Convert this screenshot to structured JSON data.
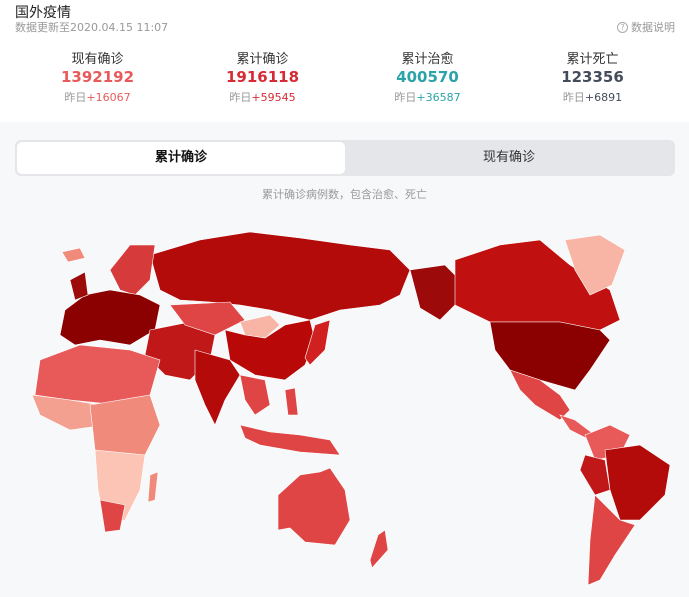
{
  "header": {
    "title": "国外疫情",
    "updated": "数据更新至2020.04.15 11:07",
    "explain": "数据说明"
  },
  "stats": [
    {
      "label": "现有确诊",
      "value": "1392192",
      "prefix": "昨日",
      "delta": "+16067",
      "color": "#e85a5a"
    },
    {
      "label": "累计确诊",
      "value": "1916118",
      "prefix": "昨日",
      "delta": "+59545",
      "color": "#d62b34"
    },
    {
      "label": "累计治愈",
      "value": "400570",
      "prefix": "昨日",
      "delta": "+36587",
      "color": "#2ba3a8"
    },
    {
      "label": "累计死亡",
      "value": "123356",
      "prefix": "昨日",
      "delta": "+6891",
      "color": "#444c5c"
    }
  ],
  "tabs": [
    {
      "label": "累计确诊",
      "active": true
    },
    {
      "label": "现有确诊",
      "active": false
    }
  ],
  "map_note": "累计确诊病例数，包含治愈、死亡",
  "colors": {
    "darkest": "#8b0000",
    "dark": "#b50a0a",
    "mid": "#e04545",
    "light": "#f08a7a",
    "lightest": "#fbc4b4"
  }
}
